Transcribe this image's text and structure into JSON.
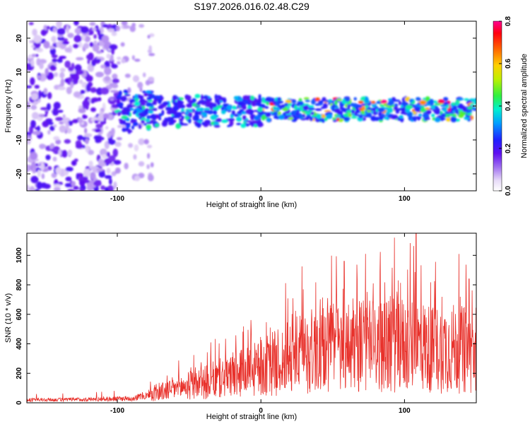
{
  "title": "S197.2026.016.02.48.C29",
  "chart_data": [
    {
      "type": "heatmap",
      "name": "spectrogram",
      "xlabel": "Height of straight line (km)",
      "ylabel": "Frequency (Hz)",
      "xlim": [
        -163,
        150
      ],
      "ylim": [
        -25,
        25
      ],
      "x_ticks": [
        -100,
        0,
        100
      ],
      "y_ticks": [
        20,
        10,
        0,
        -10,
        -20
      ],
      "colorbar": {
        "label": "Normalized spectral amplitude",
        "range": [
          0.0,
          0.8
        ],
        "ticks": [
          0.0,
          0.2,
          0.4,
          0.6,
          0.8
        ],
        "tick_labels": [
          "0.0",
          "0.2",
          "0.4",
          "0.6",
          "0.8"
        ]
      },
      "description_bands": [
        {
          "x_range": [
            -163,
            -100
          ],
          "freq_range": [
            -25,
            25
          ],
          "amplitude": 0.05
        },
        {
          "x_range": [
            -100,
            -75
          ],
          "freq_range": [
            -8,
            6
          ],
          "amplitude": 0.2
        },
        {
          "x_range": [
            -75,
            0
          ],
          "freq_range": [
            -6,
            4
          ],
          "amplitude": 0.25
        },
        {
          "x_range": [
            0,
            150
          ],
          "freq_range": [
            -5,
            3
          ],
          "amplitude": 0.45
        }
      ]
    },
    {
      "type": "line",
      "name": "snr",
      "xlabel": "Height of straight line (km)",
      "ylabel": "SNR (10 * v/v)",
      "xlim": [
        -163,
        150
      ],
      "ylim": [
        0,
        1150
      ],
      "x_ticks": [
        -100,
        0,
        100
      ],
      "y_ticks": [
        0,
        200,
        400,
        600,
        800,
        1000
      ],
      "series": [
        {
          "name": "SNR",
          "color": "#e8302a",
          "x": [
            -163,
            -150,
            -130,
            -110,
            -90,
            -80,
            -70,
            -60,
            -50,
            -40,
            -30,
            -20,
            -10,
            0,
            10,
            20,
            30,
            40,
            50,
            60,
            70,
            80,
            90,
            95,
            100,
            110,
            120,
            130,
            140,
            150
          ],
          "y": [
            20,
            20,
            22,
            25,
            30,
            50,
            80,
            110,
            130,
            150,
            180,
            200,
            230,
            260,
            300,
            340,
            380,
            400,
            420,
            430,
            440,
            420,
            420,
            460,
            430,
            440,
            400,
            420,
            400,
            350
          ],
          "peaks": [
            {
              "x": 93,
              "y": 1120
            },
            {
              "x": 108,
              "y": 1150
            },
            {
              "x": 58,
              "y": 960
            },
            {
              "x": 145,
              "y": 840
            }
          ]
        }
      ]
    }
  ]
}
